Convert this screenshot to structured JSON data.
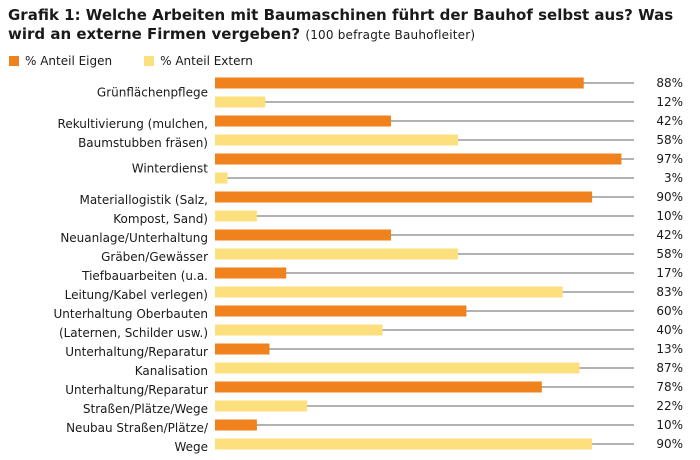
{
  "chart_data": {
    "type": "bar",
    "orientation": "horizontal",
    "title": "Grafik 1: Welche Arbeiten mit Baumaschinen führt der Bauhof selbst aus? Was wird an externe Firmen vergeben?",
    "subtitle": "(100 befragte Bauhofleiter)",
    "value_suffix": "%",
    "xlim": [
      0,
      100
    ],
    "grid": false,
    "legend_position": "top-left",
    "colors": {
      "eigen": "#f0821e",
      "extern": "#fde07e",
      "line": "#666666"
    },
    "series": [
      {
        "name": "% Anteil Eigen",
        "values": [
          88,
          42,
          97,
          90,
          42,
          17,
          60,
          13,
          78,
          10
        ]
      },
      {
        "name": "% Anteil Extern",
        "values": [
          12,
          58,
          3,
          10,
          58,
          83,
          40,
          87,
          22,
          90
        ]
      }
    ],
    "categories": [
      [
        "Grünflächenpflege"
      ],
      [
        "Rekultivierung (mulchen,",
        "Baumstubben fräsen)"
      ],
      [
        "Winterdienst"
      ],
      [
        "Materiallogistik (Salz,",
        "Kompost, Sand)"
      ],
      [
        "Neuanlage/Unterhaltung",
        "Gräben/Gewässer"
      ],
      [
        "Tiefbauarbeiten (u.a.",
        "Leitung/Kabel verlegen)"
      ],
      [
        "Unterhaltung Oberbauten",
        "(Laternen, Schilder usw.)"
      ],
      [
        "Unterhaltung/Reparatur",
        "Kanalisation"
      ],
      [
        "Unterhaltung/Reparatur",
        "Straßen/Plätze/Wege"
      ],
      [
        "Neubau Straßen/Plätze/",
        "Wege"
      ]
    ]
  }
}
